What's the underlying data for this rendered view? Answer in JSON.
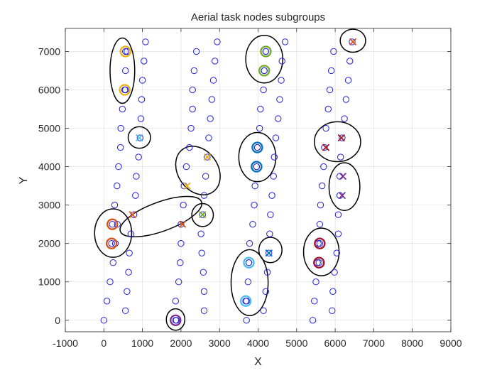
{
  "chart_data": {
    "type": "scatter",
    "title": "Aerial task nodes subgroups",
    "xlabel": "X",
    "ylabel": "Y",
    "xlim": [
      -1000,
      9000
    ],
    "ylim": [
      -300,
      7600
    ],
    "xticks": [
      -1000,
      0,
      1000,
      2000,
      3000,
      4000,
      5000,
      6000,
      7000,
      8000,
      9000
    ],
    "xtick_labels": [
      "-1000",
      "0",
      "1000",
      "2000",
      "3000",
      "4000",
      "5000",
      "6000",
      "7000",
      "8000",
      "9000"
    ],
    "yticks": [
      0,
      1000,
      2000,
      3000,
      4000,
      5000,
      6000,
      7000
    ],
    "ytick_labels": [
      "0",
      "1000",
      "2000",
      "3000",
      "4000",
      "5000",
      "6000",
      "7000"
    ],
    "grid": true,
    "colors": {
      "node": "#1f1fdc",
      "axis": "#262626",
      "grid": "#dcdcdc",
      "ellipse": "#000000"
    },
    "nodes": [
      [
        0,
        0
      ],
      [
        80,
        500
      ],
      [
        160,
        1000
      ],
      [
        240,
        1500
      ],
      [
        300,
        2000
      ],
      [
        350,
        2500
      ],
      [
        280,
        3000
      ],
      [
        340,
        3500
      ],
      [
        380,
        4000
      ],
      [
        430,
        4500
      ],
      [
        440,
        5000
      ],
      [
        480,
        5500
      ],
      [
        560,
        6000
      ],
      [
        560,
        6500
      ],
      [
        600,
        7000
      ],
      [
        560,
        250
      ],
      [
        600,
        750
      ],
      [
        640,
        1250
      ],
      [
        660,
        1750
      ],
      [
        700,
        2250
      ],
      [
        780,
        2750
      ],
      [
        820,
        3250
      ],
      [
        840,
        3750
      ],
      [
        900,
        4250
      ],
      [
        940,
        4750
      ],
      [
        960,
        5250
      ],
      [
        980,
        5750
      ],
      [
        1000,
        6250
      ],
      [
        1040,
        6750
      ],
      [
        1080,
        7250
      ],
      [
        1880,
        0
      ],
      [
        1860,
        500
      ],
      [
        1940,
        1000
      ],
      [
        1980,
        1500
      ],
      [
        2000,
        2000
      ],
      [
        2000,
        2500
      ],
      [
        2060,
        3000
      ],
      [
        2080,
        3500
      ],
      [
        2140,
        4000
      ],
      [
        2220,
        4500
      ],
      [
        2260,
        5000
      ],
      [
        2300,
        5500
      ],
      [
        2300,
        6000
      ],
      [
        2340,
        6500
      ],
      [
        2400,
        7000
      ],
      [
        2600,
        250
      ],
      [
        2600,
        750
      ],
      [
        2580,
        1250
      ],
      [
        2540,
        1750
      ],
      [
        2520,
        2250
      ],
      [
        2560,
        2750
      ],
      [
        2600,
        3250
      ],
      [
        2640,
        3750
      ],
      [
        2680,
        4250
      ],
      [
        2720,
        4750
      ],
      [
        2760,
        5250
      ],
      [
        2800,
        5750
      ],
      [
        2840,
        6250
      ],
      [
        2880,
        6750
      ],
      [
        2940,
        7250
      ],
      [
        3700,
        0
      ],
      [
        3700,
        500
      ],
      [
        3740,
        1000
      ],
      [
        3760,
        1500
      ],
      [
        3780,
        2000
      ],
      [
        3860,
        2500
      ],
      [
        3900,
        3000
      ],
      [
        3920,
        3500
      ],
      [
        3960,
        4000
      ],
      [
        3980,
        4500
      ],
      [
        4040,
        5000
      ],
      [
        4060,
        5500
      ],
      [
        4140,
        6000
      ],
      [
        4160,
        6500
      ],
      [
        4200,
        7000
      ],
      [
        4140,
        250
      ],
      [
        4200,
        750
      ],
      [
        4240,
        1250
      ],
      [
        4280,
        1750
      ],
      [
        4300,
        2250
      ],
      [
        4320,
        2750
      ],
      [
        4360,
        3250
      ],
      [
        4400,
        3750
      ],
      [
        4420,
        4250
      ],
      [
        4460,
        4750
      ],
      [
        4520,
        5250
      ],
      [
        4560,
        5750
      ],
      [
        4600,
        6250
      ],
      [
        4620,
        6750
      ],
      [
        4700,
        7250
      ],
      [
        5420,
        0
      ],
      [
        5460,
        500
      ],
      [
        5500,
        1000
      ],
      [
        5540,
        1500
      ],
      [
        5560,
        2000
      ],
      [
        5600,
        2500
      ],
      [
        5620,
        3000
      ],
      [
        5660,
        3500
      ],
      [
        5700,
        4000
      ],
      [
        5720,
        4500
      ],
      [
        5760,
        5000
      ],
      [
        5820,
        5500
      ],
      [
        5860,
        6000
      ],
      [
        5900,
        6500
      ],
      [
        5960,
        7000
      ],
      [
        5920,
        250
      ],
      [
        5940,
        750
      ],
      [
        5980,
        1250
      ],
      [
        6040,
        1750
      ],
      [
        6080,
        2250
      ],
      [
        6080,
        2750
      ],
      [
        6120,
        3250
      ],
      [
        6120,
        3750
      ],
      [
        6140,
        4250
      ],
      [
        6180,
        4750
      ],
      [
        6240,
        5250
      ],
      [
        6280,
        5750
      ],
      [
        6340,
        6250
      ],
      [
        6380,
        6750
      ],
      [
        6440,
        7250
      ]
    ],
    "groups": [
      {
        "color": "#EDB120",
        "ellipse": [
          480,
          6500,
          320,
          850,
          0
        ],
        "rings": [
          [
            560,
            7000
          ],
          [
            540,
            6000
          ]
        ],
        "crosses": []
      },
      {
        "color": "#77AC30",
        "ellipse": [
          4160,
          6800,
          480,
          620,
          0
        ],
        "rings": [
          [
            4200,
            7000
          ],
          [
            4160,
            6500
          ]
        ],
        "crosses": []
      },
      {
        "color": "#D95319",
        "ellipse": [
          6460,
          7280,
          330,
          300,
          0
        ],
        "rings": [],
        "crosses": [
          [
            6460,
            7250
          ]
        ]
      },
      {
        "color": "#4DBEEE",
        "ellipse": [
          920,
          4760,
          290,
          280,
          0
        ],
        "rings": [],
        "crosses": [
          [
            920,
            4750
          ]
        ]
      },
      {
        "color": "#0072BD",
        "ellipse": [
          3980,
          4250,
          480,
          640,
          0
        ],
        "rings": [
          [
            3980,
            4500
          ],
          [
            3960,
            4000
          ]
        ],
        "crosses": []
      },
      {
        "color": "#A2142F",
        "ellipse": [
          6060,
          4650,
          600,
          520,
          0
        ],
        "rings": [],
        "crosses": [
          [
            5760,
            4500
          ],
          [
            6160,
            4750
          ]
        ]
      },
      {
        "color": "#EDB120",
        "ellipse": [
          2440,
          3900,
          520,
          680,
          -35
        ],
        "rings": [],
        "crosses": [
          [
            2680,
            4250
          ],
          [
            2160,
            3500
          ]
        ]
      },
      {
        "color": "#7E2F8E",
        "ellipse": [
          6240,
          3480,
          400,
          620,
          0
        ],
        "rings": [],
        "crosses": [
          [
            6200,
            3750
          ],
          [
            6180,
            3250
          ]
        ]
      },
      {
        "color": "#D95319",
        "ellipse": [
          1480,
          2700,
          1120,
          380,
          -20
        ],
        "rings": [],
        "crosses": [
          [
            740,
            2750
          ],
          [
            2040,
            2500
          ]
        ]
      },
      {
        "color": "#77AC30",
        "ellipse": [
          2560,
          2740,
          280,
          300,
          0
        ],
        "rings": [],
        "crosses": [
          [
            2560,
            2750
          ]
        ]
      },
      {
        "color": "#D95319",
        "ellipse": [
          240,
          2270,
          480,
          630,
          0
        ],
        "rings": [
          [
            220,
            2500
          ],
          [
            200,
            2000
          ]
        ],
        "crosses": []
      },
      {
        "color": "#0072BD",
        "ellipse": [
          4320,
          1830,
          300,
          330,
          0
        ],
        "rings": [],
        "crosses": [
          [
            4280,
            1750
          ]
        ]
      },
      {
        "color": "#A2142F",
        "ellipse": [
          5640,
          1780,
          460,
          620,
          0
        ],
        "rings": [
          [
            5600,
            2000
          ],
          [
            5580,
            1500
          ]
        ],
        "crosses": []
      },
      {
        "color": "#4DBEEE",
        "ellipse": [
          3780,
          980,
          480,
          860,
          0
        ],
        "rings": [
          [
            3760,
            1500
          ],
          [
            3680,
            500
          ]
        ],
        "crosses": []
      },
      {
        "color": "#7E2F8E",
        "ellipse": [
          1860,
          20,
          240,
          280,
          0
        ],
        "rings": [
          [
            1860,
            0
          ]
        ],
        "crosses": []
      }
    ]
  }
}
